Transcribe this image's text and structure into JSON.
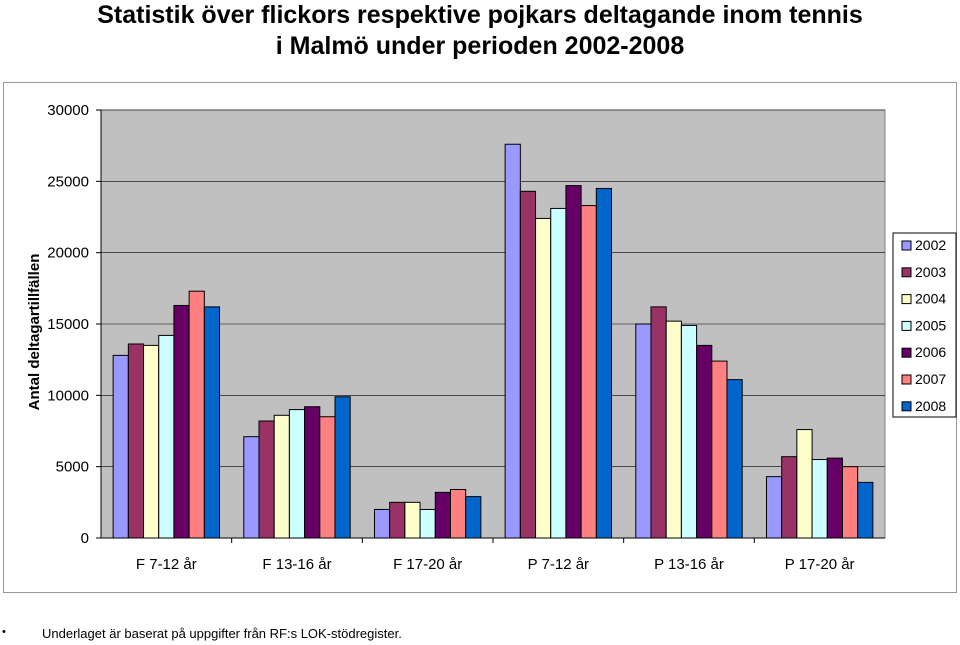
{
  "header": {
    "title_line1": "Statistik över flickors respektive pojkars deltagande inom tennis",
    "title_line2": "i Malmö under perioden 2002-2008"
  },
  "footnote": {
    "bullet": "•",
    "text": "Underlaget är baserat på uppgifter från RF:s LOK-stödregister."
  },
  "chart_data": {
    "type": "bar",
    "title": "Statistik över flickors respektive pojkars deltagande inom tennis i Malmö under perioden 2002-2008",
    "xlabel": "",
    "ylabel": "Antal deltagartillfällen",
    "ylim": [
      0,
      30000
    ],
    "yticks": [
      "0",
      "5000",
      "10000",
      "15000",
      "20000",
      "25000",
      "30000"
    ],
    "grid": true,
    "legend_position": "right",
    "categories": [
      "F 7-12 år",
      "F 13-16 år",
      "F 17-20 år",
      "P 7-12 år",
      "P 13-16 år",
      "P 17-20 år"
    ],
    "series": [
      {
        "name": "2002",
        "color": "#9999ff",
        "values": [
          12800,
          7100,
          2000,
          27600,
          15000,
          4300
        ]
      },
      {
        "name": "2003",
        "color": "#993366",
        "values": [
          13600,
          8200,
          2500,
          24300,
          16200,
          5700
        ]
      },
      {
        "name": "2004",
        "color": "#ffffcc",
        "values": [
          13500,
          8600,
          2500,
          22400,
          15200,
          7600
        ]
      },
      {
        "name": "2005",
        "color": "#ccffff",
        "values": [
          14200,
          9000,
          2000,
          23100,
          14900,
          5500
        ]
      },
      {
        "name": "2006",
        "color": "#660066",
        "values": [
          16300,
          9200,
          3200,
          24700,
          13500,
          5600
        ]
      },
      {
        "name": "2007",
        "color": "#ff8080",
        "values": [
          17300,
          8500,
          3400,
          23300,
          12400,
          5000
        ]
      },
      {
        "name": "2008",
        "color": "#0066cc",
        "values": [
          16200,
          9900,
          2900,
          24500,
          11100,
          3900
        ]
      }
    ],
    "colors": {
      "plot_background": "#c0c0c0",
      "gridline": "#000000"
    }
  }
}
